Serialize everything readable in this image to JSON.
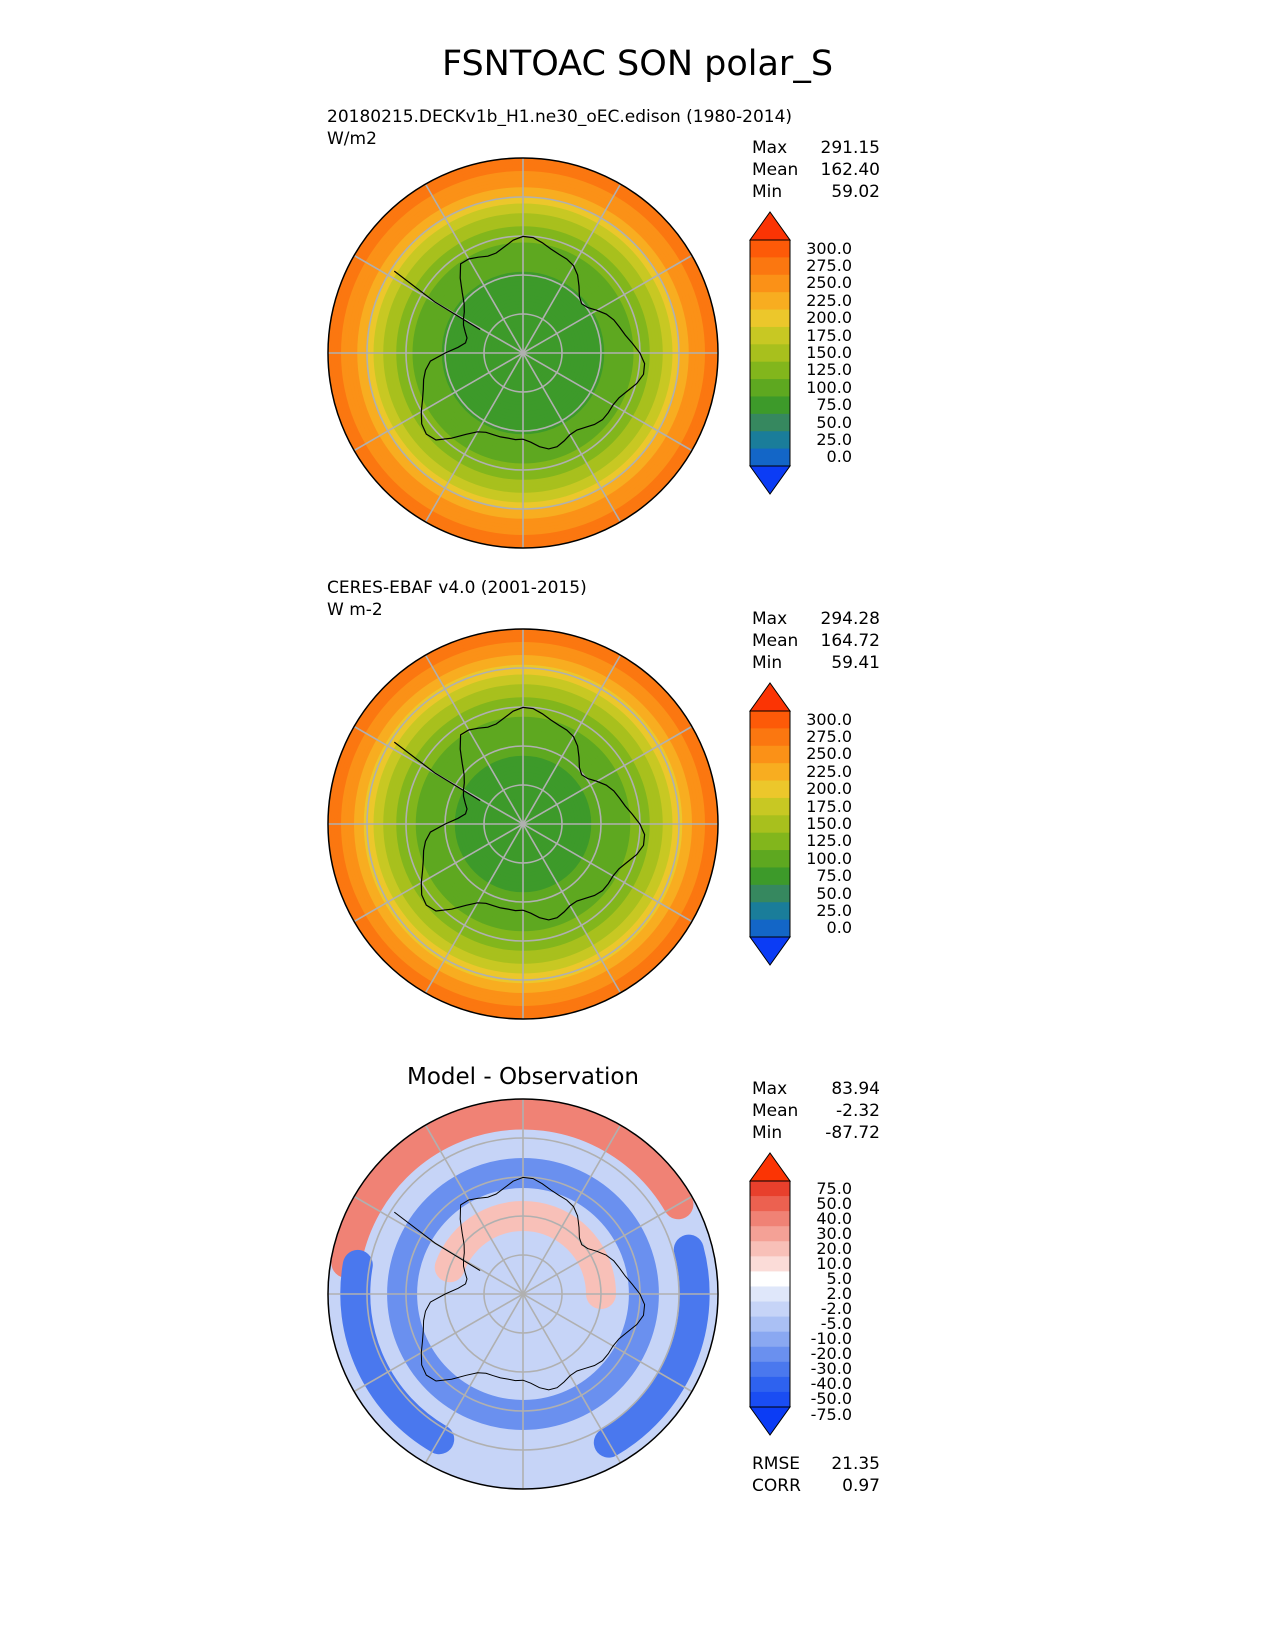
{
  "figure_title": "FSNTOAC SON polar_S",
  "panels": [
    {
      "title_line1": "20180215.DECKv1b_H1.ne30_oEC.edison (1980-2014)",
      "title_line2": "W/m2",
      "stats": [
        {
          "label": "Max",
          "value": "291.15"
        },
        {
          "label": "Mean",
          "value": "162.40"
        },
        {
          "label": "Min",
          "value": "59.02"
        }
      ],
      "colorbar_ticks": [
        "300.0",
        "275.0",
        "250.0",
        "225.0",
        "200.0",
        "175.0",
        "150.0",
        "125.0",
        "100.0",
        "75.0",
        "50.0",
        "25.0",
        "0.0"
      ]
    },
    {
      "title_line1": "CERES-EBAF v4.0 (2001-2015)",
      "title_line2": "W m-2",
      "stats": [
        {
          "label": "Max",
          "value": "294.28"
        },
        {
          "label": "Mean",
          "value": "164.72"
        },
        {
          "label": "Min",
          "value": "59.41"
        }
      ],
      "colorbar_ticks": [
        "300.0",
        "275.0",
        "250.0",
        "225.0",
        "200.0",
        "175.0",
        "150.0",
        "125.0",
        "100.0",
        "75.0",
        "50.0",
        "25.0",
        "0.0"
      ]
    },
    {
      "title": "Model - Observation",
      "stats": [
        {
          "label": "Max",
          "value": "83.94"
        },
        {
          "label": "Mean",
          "value": "-2.32"
        },
        {
          "label": "Min",
          "value": "-87.72"
        }
      ],
      "extra_stats": [
        {
          "label": "RMSE",
          "value": "21.35"
        },
        {
          "label": "CORR",
          "value": "0.97"
        }
      ],
      "colorbar_ticks": [
        "75.0",
        "50.0",
        "40.0",
        "30.0",
        "20.0",
        "10.0",
        "5.0",
        "2.0",
        "-2.0",
        "-5.0",
        "-10.0",
        "-20.0",
        "-30.0",
        "-40.0",
        "-50.0",
        "-75.0"
      ]
    }
  ],
  "chart_data": [
    {
      "type": "heatmap",
      "projection": "south-polar-stereographic",
      "variable": "FSNTOAC",
      "season": "SON",
      "units": "W/m2",
      "levels": [
        0,
        25,
        50,
        75,
        100,
        125,
        150,
        175,
        200,
        225,
        250,
        275,
        300
      ],
      "colors": [
        "#0b3cf5",
        "#1366c7",
        "#1a7d9a",
        "#36885f",
        "#3d9a2a",
        "#5ea820",
        "#82b61c",
        "#a8c01d",
        "#c8c823",
        "#ecc72b",
        "#f8ad20",
        "#fb9117",
        "#fb7710",
        "#fd5a08",
        "#fb3404"
      ],
      "radial_profile": [
        [
          0,
          75
        ],
        [
          0.25,
          80
        ],
        [
          0.42,
          98
        ],
        [
          0.55,
          120
        ],
        [
          0.64,
          145
        ],
        [
          0.72,
          175
        ],
        [
          0.78,
          205
        ],
        [
          0.84,
          240
        ],
        [
          0.91,
          270
        ],
        [
          1,
          285
        ]
      ],
      "stats": {
        "max": 291.15,
        "mean": 162.4,
        "min": 59.02
      }
    },
    {
      "type": "heatmap",
      "projection": "south-polar-stereographic",
      "variable": "FSNTOAC",
      "season": "SON",
      "units": "W m-2",
      "levels": [
        0,
        25,
        50,
        75,
        100,
        125,
        150,
        175,
        200,
        225,
        250,
        275,
        300
      ],
      "colors": [
        "#0b3cf5",
        "#1366c7",
        "#1a7d9a",
        "#36885f",
        "#3d9a2a",
        "#5ea820",
        "#82b61c",
        "#a8c01d",
        "#c8c823",
        "#ecc72b",
        "#f8ad20",
        "#fb9117",
        "#fb7710",
        "#fd5a08",
        "#fb3404"
      ],
      "radial_profile": [
        [
          0,
          85
        ],
        [
          0.3,
          95
        ],
        [
          0.5,
          112
        ],
        [
          0.6,
          135
        ],
        [
          0.68,
          158
        ],
        [
          0.75,
          185
        ],
        [
          0.82,
          220
        ],
        [
          0.88,
          255
        ],
        [
          0.94,
          275
        ],
        [
          1,
          288
        ]
      ],
      "stats": {
        "max": 294.28,
        "mean": 164.72,
        "min": 59.41
      }
    },
    {
      "type": "heatmap",
      "projection": "south-polar-stereographic",
      "levels": [
        -75,
        -50,
        -40,
        -30,
        -20,
        -10,
        -5,
        -2,
        2,
        5,
        10,
        20,
        30,
        40,
        50,
        75
      ],
      "colors": [
        "#0b3cf5",
        "#1a4df3",
        "#2e62ef",
        "#4a78ee",
        "#6a90ef",
        "#8aa8f1",
        "#aac0f4",
        "#c6d4f7",
        "#dfe7fa",
        "#ffffff",
        "#fbdcd8",
        "#f8c0b8",
        "#f4a196",
        "#f08275",
        "#ec6150",
        "#e8402c",
        "#fb3404"
      ],
      "rings": [
        {
          "radius": 0.92,
          "value": 35,
          "from_deg": 190,
          "to_deg": 330
        },
        {
          "radius": 0.88,
          "value": -35,
          "from_deg": 345,
          "to_deg": 420
        },
        {
          "radius": 0.86,
          "value": -40,
          "from_deg": 120,
          "to_deg": 190
        },
        {
          "radius": 0.62,
          "value": -25,
          "from_deg": 0,
          "to_deg": 360
        },
        {
          "radius": 0.4,
          "value": 12,
          "from_deg": 200,
          "to_deg": 360
        }
      ],
      "stats": {
        "max": 83.94,
        "mean": -2.32,
        "min": -87.72,
        "rmse": 21.35,
        "corr": 0.97
      }
    }
  ]
}
